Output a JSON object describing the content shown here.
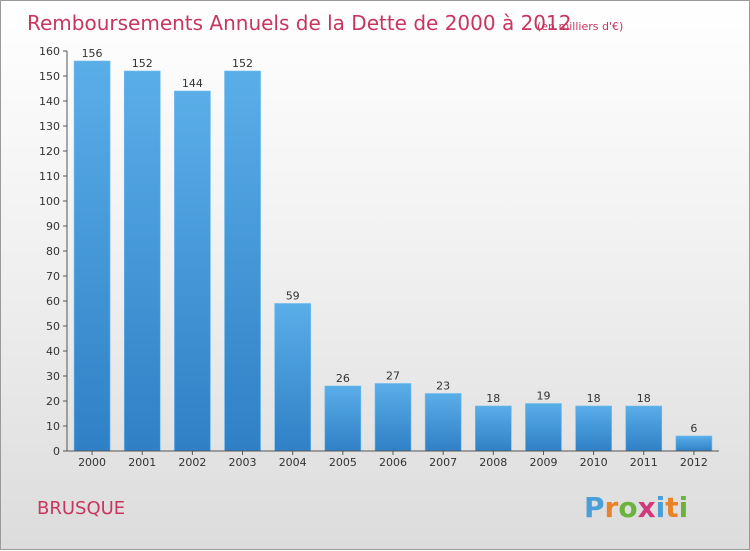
{
  "chart_data": {
    "type": "bar",
    "title": "Remboursements Annuels de la Dette de 2000 à 2012",
    "subtitle": "(en milliers d'€)",
    "categories": [
      "2000",
      "2001",
      "2002",
      "2003",
      "2004",
      "2005",
      "2006",
      "2007",
      "2008",
      "2009",
      "2010",
      "2011",
      "2012"
    ],
    "values": [
      156,
      152,
      144,
      152,
      59,
      26,
      27,
      23,
      18,
      19,
      18,
      18,
      6
    ],
    "ylim": [
      0,
      160
    ],
    "yticks": [
      0,
      10,
      20,
      30,
      40,
      50,
      60,
      70,
      80,
      90,
      100,
      110,
      120,
      130,
      140,
      150,
      160
    ],
    "grid": false,
    "bar_color": "#3f97de",
    "title_color": "#c8365f"
  },
  "commune": "BRUSQUE",
  "logo": {
    "text": "Proxiti",
    "letters": [
      "P",
      "r",
      "o",
      "x",
      "i",
      "t",
      "i"
    ],
    "colors": [
      "#4a9fd8",
      "#e8832a",
      "#6bb33c",
      "#d13a7a",
      "#4a9fd8",
      "#e8832a",
      "#6bb33c"
    ]
  }
}
